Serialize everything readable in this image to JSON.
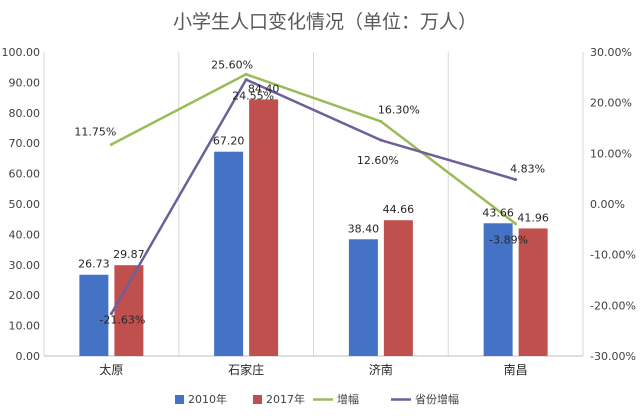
{
  "chart_data": {
    "type": "bar",
    "title": "小学生人口变化情况（单位：万人）",
    "categories": [
      "太原",
      "石家庄",
      "济南",
      "南昌"
    ],
    "series": [
      {
        "name": "2010年",
        "kind": "bar",
        "axis": "left",
        "color": "#4472C4",
        "values": [
          26.73,
          67.2,
          38.4,
          43.66
        ],
        "labels": [
          "26.73",
          "67.20",
          "38.40",
          "43.66"
        ]
      },
      {
        "name": "2017年",
        "kind": "bar",
        "axis": "left",
        "color": "#C0504D",
        "values": [
          29.87,
          84.4,
          44.66,
          41.96
        ],
        "labels": [
          "29.87",
          "84.40",
          "44.66",
          "41.96"
        ]
      },
      {
        "name": "增幅",
        "kind": "line",
        "axis": "right",
        "color": "#9BBB59",
        "values": [
          11.75,
          25.6,
          16.3,
          -3.89
        ],
        "labels": [
          "11.75%",
          "25.60%",
          "16.30%",
          "-3.89%"
        ]
      },
      {
        "name": "省份增幅",
        "kind": "line",
        "axis": "right",
        "color": "#6F5F99",
        "values": [
          -21.63,
          24.55,
          12.6,
          4.83
        ],
        "labels": [
          "-21.63%",
          "24.55%",
          "12.60%",
          "4.83%"
        ]
      }
    ],
    "ylim": [
      0,
      100
    ],
    "ylim_right": [
      -30,
      30
    ],
    "yticks_left": [
      "0.00",
      "10.00",
      "20.00",
      "30.00",
      "40.00",
      "50.00",
      "60.00",
      "70.00",
      "80.00",
      "90.00",
      "100.00"
    ],
    "yticks_right": [
      "-30.00%",
      "-20.00%",
      "-10.00%",
      "0.00%",
      "10.00%",
      "20.00%",
      "30.00%"
    ],
    "grid": "vertical category separators",
    "legend": "bottom"
  }
}
